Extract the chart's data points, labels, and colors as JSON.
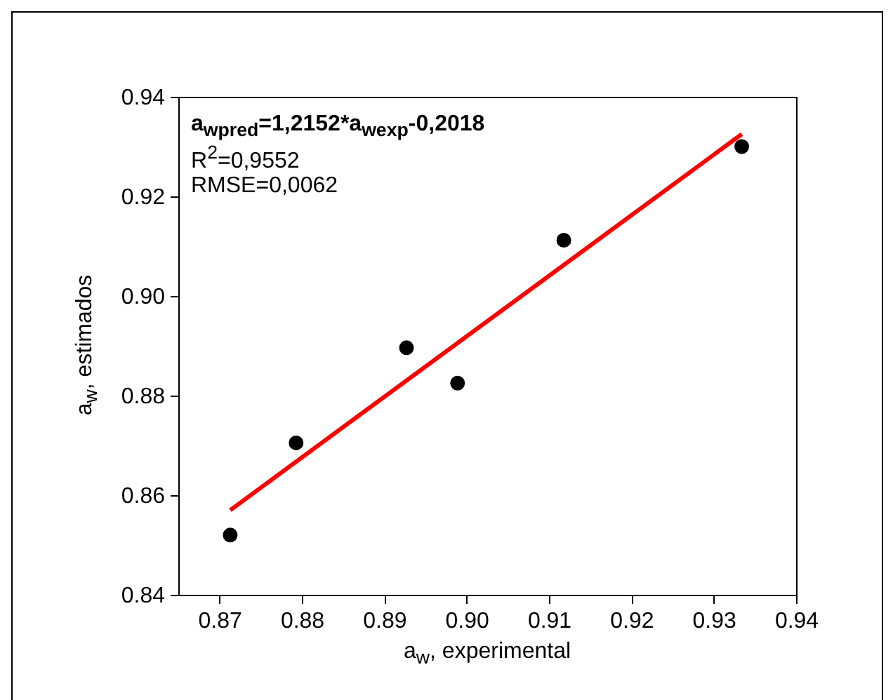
{
  "chart_data": {
    "type": "scatter",
    "xlabel": "a$_{w}$, experimental",
    "ylabel": "a$_{w}$, estimados",
    "annotations": [
      "a$_{wpred}$=1,2152*a$_{wexp}$-0,2018",
      "R$^{2}$=0,9552",
      "RMSE=0,0062"
    ],
    "series": [
      {
        "type": "scatter",
        "color": "#000000",
        "marker": "circle",
        "x": [
          0.8713,
          0.8793,
          0.8927,
          0.8989,
          0.9118,
          0.9334
        ],
        "values": [
          0.852,
          0.8705,
          0.8896,
          0.8825,
          0.9112,
          0.93
        ]
      },
      {
        "type": "line",
        "color": "#ff0000",
        "line_style": "solid",
        "x": [
          0.8713,
          0.9334
        ],
        "values": [
          0.857,
          0.9325
        ]
      }
    ],
    "xlim": [
      0.865,
      0.94
    ],
    "xticks": [
      0.87,
      0.88,
      0.89,
      {
        "value": 0.9,
        "label": "0.90"
      },
      0.91,
      0.92,
      0.93,
      0.94
    ],
    "ylim": [
      0.84,
      0.94
    ],
    "yticks": [
      0.84,
      0.86,
      0.88,
      {
        "value": 0.9,
        "label": "0.90"
      },
      0.92,
      0.94
    ],
    "grid": false
  }
}
